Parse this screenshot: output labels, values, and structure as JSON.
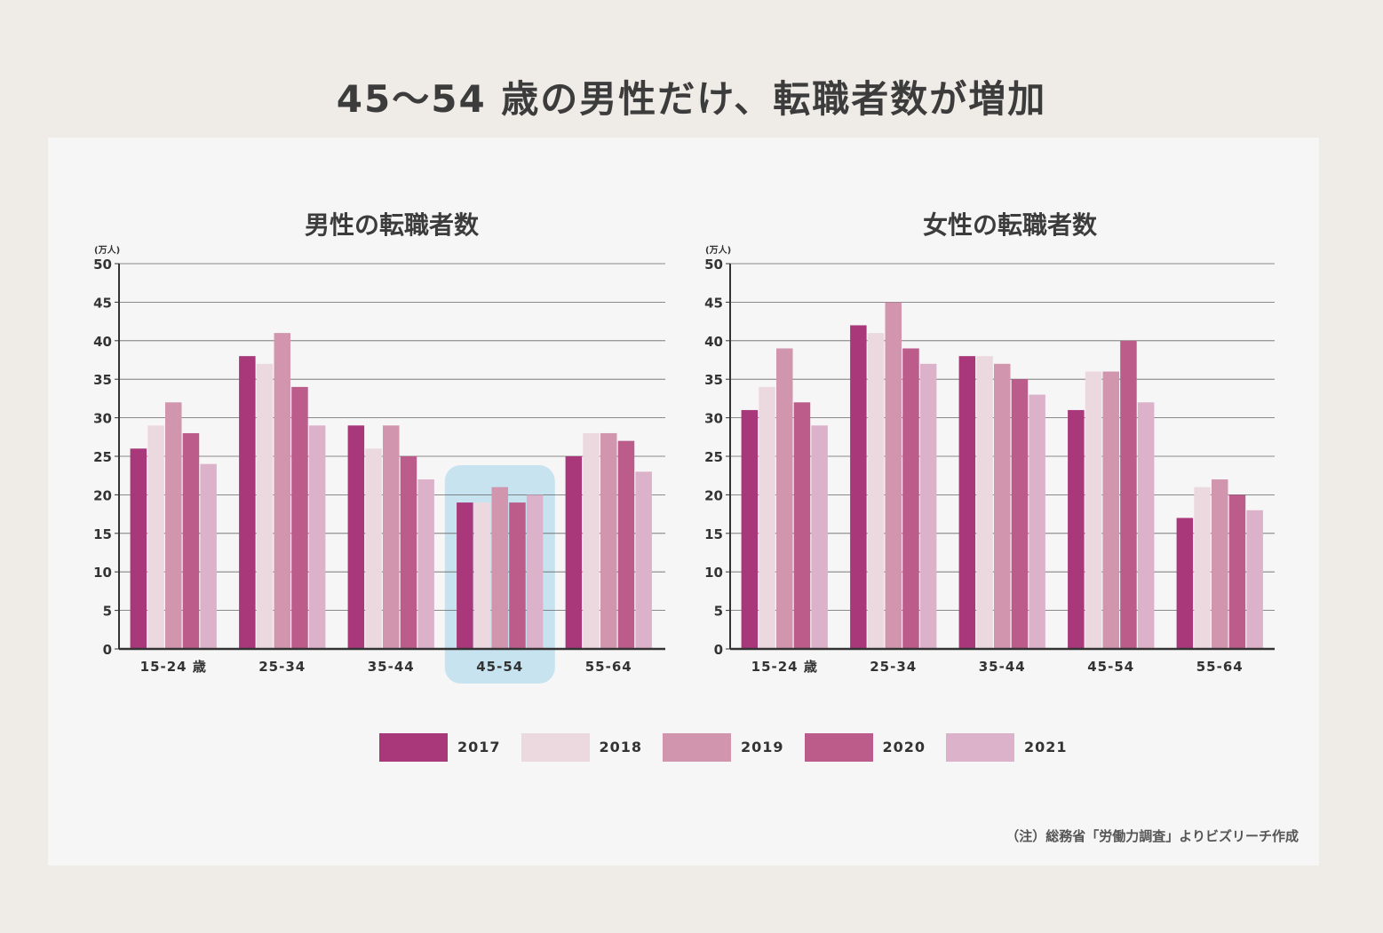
{
  "title": "45～54 歳の男性だけ、転職者数が増加",
  "note": "（注）総務省「労働力調査」よりビズリーチ作成",
  "legend": [
    {
      "label": "2017",
      "color": "#a8387a"
    },
    {
      "label": "2018",
      "color": "#ecd9df"
    },
    {
      "label": "2019",
      "color": "#d196ae"
    },
    {
      "label": "2020",
      "color": "#bb5c8a"
    },
    {
      "label": "2021",
      "color": "#dcb2cb"
    }
  ],
  "highlight_color": "#c6e3ef",
  "chart_data": [
    {
      "type": "bar",
      "title": "男性の転職者数",
      "unit": "(万人)",
      "categories": [
        "15-24 歳",
        "25-34",
        "35-44",
        "45-54",
        "55-64"
      ],
      "yticks": [
        "0",
        "5",
        "10",
        "15",
        "20",
        "25",
        "30",
        "35",
        "40",
        "45",
        "50"
      ],
      "ylim": [
        0,
        50
      ],
      "grid": true,
      "highlight_category": "45-54",
      "series": [
        {
          "name": "2017",
          "values": [
            26,
            38,
            29,
            19,
            25
          ]
        },
        {
          "name": "2018",
          "values": [
            29,
            37,
            26,
            19,
            28
          ]
        },
        {
          "name": "2019",
          "values": [
            32,
            41,
            29,
            21,
            28
          ]
        },
        {
          "name": "2020",
          "values": [
            28,
            34,
            25,
            19,
            27
          ]
        },
        {
          "name": "2021",
          "values": [
            24,
            29,
            22,
            20,
            23
          ]
        }
      ]
    },
    {
      "type": "bar",
      "title": "女性の転職者数",
      "unit": "(万人)",
      "categories": [
        "15-24 歳",
        "25-34",
        "35-44",
        "45-54",
        "55-64"
      ],
      "yticks": [
        "0",
        "5",
        "10",
        "15",
        "20",
        "25",
        "30",
        "35",
        "40",
        "45",
        "50"
      ],
      "ylim": [
        0,
        50
      ],
      "grid": true,
      "series": [
        {
          "name": "2017",
          "values": [
            31,
            42,
            38,
            31,
            17
          ]
        },
        {
          "name": "2018",
          "values": [
            34,
            41,
            38,
            36,
            21
          ]
        },
        {
          "name": "2019",
          "values": [
            39,
            45,
            37,
            36,
            22
          ]
        },
        {
          "name": "2020",
          "values": [
            32,
            39,
            35,
            40,
            20
          ]
        },
        {
          "name": "2021",
          "values": [
            29,
            37,
            33,
            32,
            18
          ]
        }
      ]
    }
  ]
}
